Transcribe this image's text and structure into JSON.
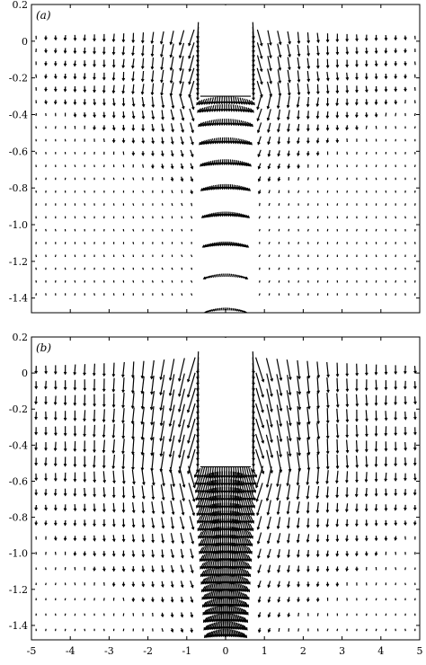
{
  "chart_data": [
    {
      "type": "quiver",
      "panel_label": "(a)",
      "xlim": [
        -5,
        5
      ],
      "ylim": [
        -1.48,
        0.2
      ],
      "x_ticks": [
        -5,
        -4,
        -3,
        -2,
        -1,
        0,
        1,
        2,
        3,
        4,
        5
      ],
      "y_ticks": [
        0.2,
        0,
        -0.2,
        -0.4,
        -0.6,
        -0.8,
        -1.0,
        -1.2,
        -1.4
      ],
      "y_tick_labels": [
        "0.2",
        "0",
        "-0.2",
        "-0.4",
        "-0.6",
        "-0.8",
        "-1.0",
        "-1.2",
        "-1.4"
      ],
      "x_tick_labels": [],
      "obstacle": {
        "x": [
          -0.65,
          0.65
        ],
        "y_top": 0.2,
        "y_bottom": -0.3
      },
      "grid": false,
      "arrow_color": "#000000"
    },
    {
      "type": "quiver",
      "panel_label": "(b)",
      "xlim": [
        -5,
        5
      ],
      "ylim": [
        -1.48,
        0.2
      ],
      "x_ticks": [
        -5,
        -4,
        -3,
        -2,
        -1,
        0,
        1,
        2,
        3,
        4,
        5
      ],
      "y_ticks": [
        0.2,
        0,
        -0.2,
        -0.4,
        -0.6,
        -0.8,
        -1.0,
        -1.2,
        -1.4
      ],
      "y_tick_labels": [
        "0.2",
        "0",
        "-0.2",
        "-0.4",
        "-0.6",
        "-0.8",
        "-1.0",
        "-1.2",
        "-1.4"
      ],
      "x_tick_labels": [
        "-5",
        "-4",
        "-3",
        "-2",
        "-1",
        "0",
        "1",
        "2",
        "3",
        "4",
        "5"
      ],
      "obstacle": {
        "x": [
          -0.65,
          0.65
        ],
        "y_top": 0.2,
        "y_bottom": -0.52
      },
      "grid": false,
      "arrow_color": "#000000"
    }
  ]
}
